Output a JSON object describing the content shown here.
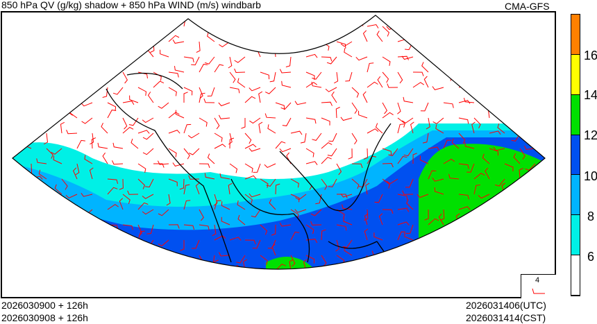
{
  "title": "850 hPa QV (g/kg) shadow + 850 hPa WIND (m/s) windbarb",
  "model": "CMA-GFS",
  "footer": {
    "init_utc": "2026030900 + 126h",
    "init_cst": "2026030908 + 126h",
    "valid_utc": "2026031406(UTC)",
    "valid_cst": "2026031414(CST)"
  },
  "legend": {
    "reference_speed": "4",
    "barb_color": "#ff0000"
  },
  "colorbar": {
    "labels": [
      "16",
      "14",
      "12",
      "10",
      "8",
      "6"
    ],
    "colors": [
      "#ff8000",
      "#ffff00",
      "#00e000",
      "#0050f0",
      "#00b4ff",
      "#00f0e6",
      "#ffffff"
    ]
  },
  "map": {
    "land_outline": "#000000",
    "barb_color": "#ff0000",
    "colors": {
      "cyan": "#00f0e6",
      "light_blue": "#00b4ff",
      "blue": "#0050f0",
      "green": "#00e000",
      "yellow": "#ffff00"
    }
  }
}
